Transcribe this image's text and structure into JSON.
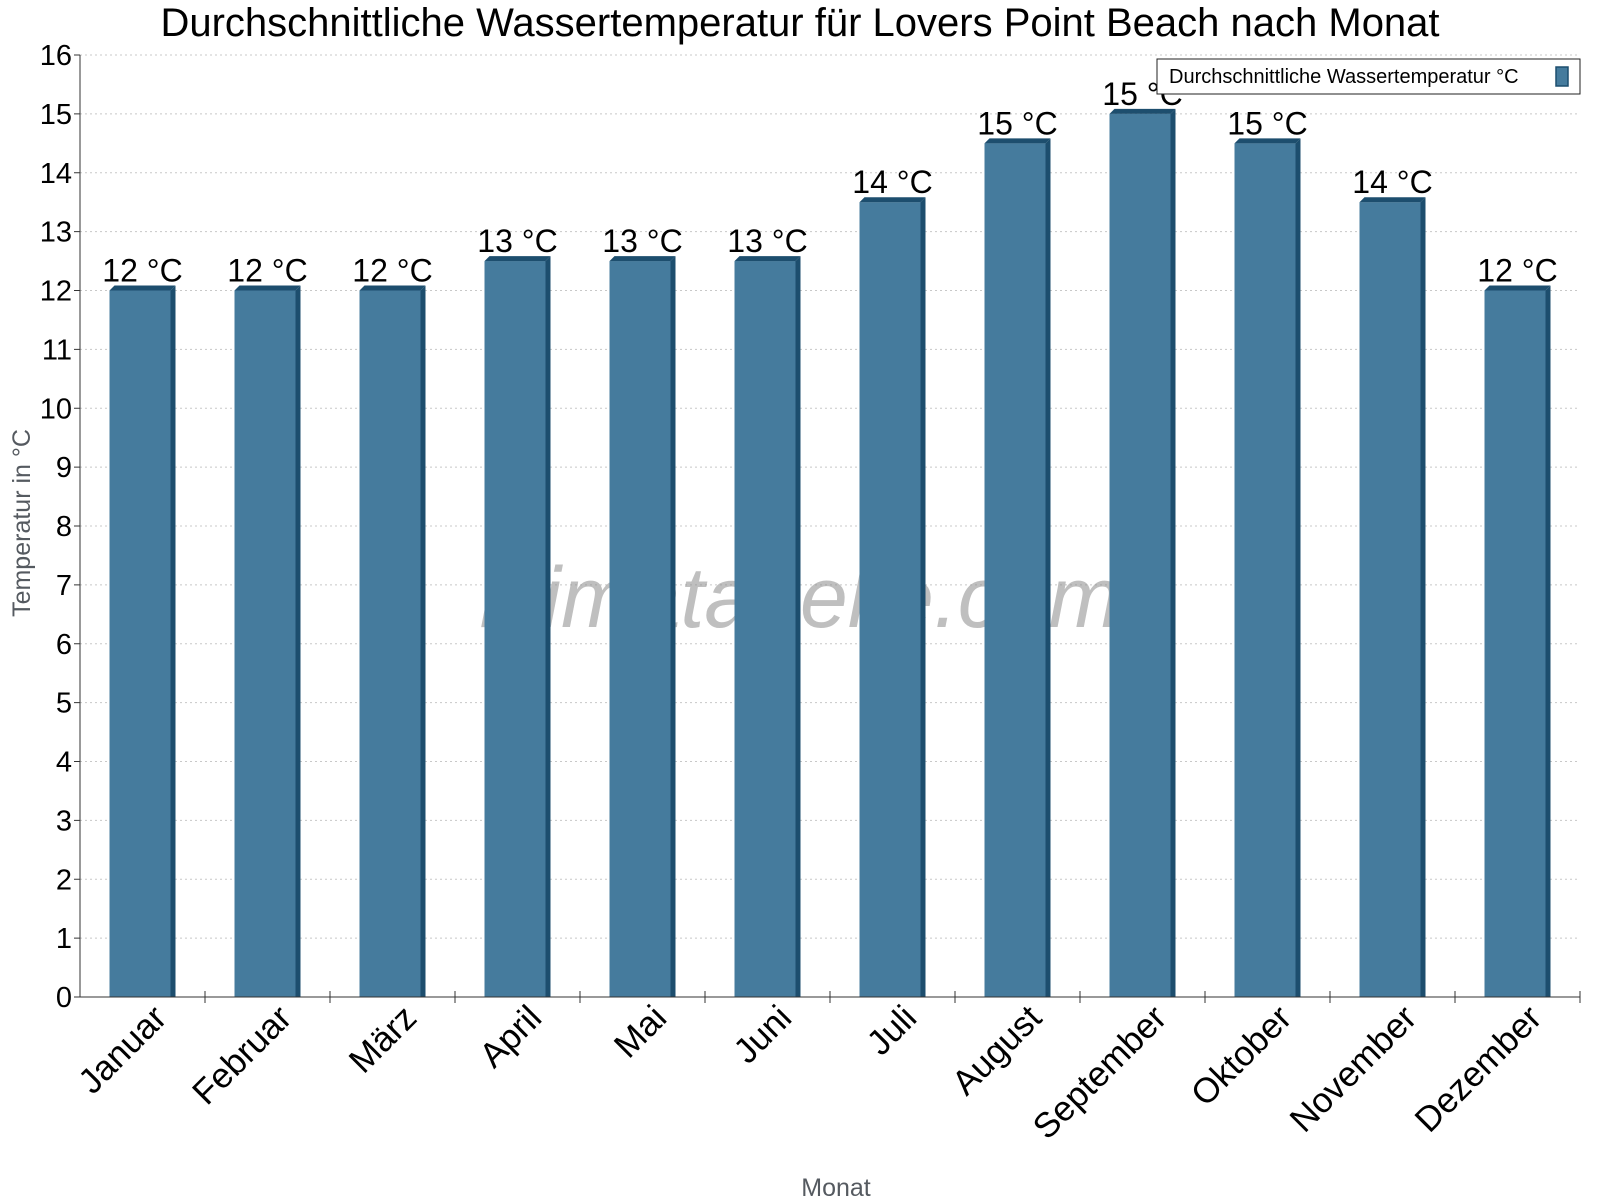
{
  "chart_data": {
    "type": "bar",
    "title": "Durchschnittliche Wassertemperatur für Lovers Point Beach nach Monat",
    "xlabel": "Monat",
    "ylabel": "Temperatur in °C",
    "ylim": [
      0,
      16
    ],
    "yticks": [
      "0",
      "1",
      "2",
      "3",
      "4",
      "5",
      "6",
      "7",
      "8",
      "9",
      "10",
      "11",
      "12",
      "13",
      "14",
      "15",
      "16"
    ],
    "grid": true,
    "legend_position": "top-right",
    "watermark": "klimatabelle.com",
    "categories": [
      "Januar",
      "Februar",
      "März",
      "April",
      "Mai",
      "Juni",
      "Juli",
      "August",
      "September",
      "Oktober",
      "November",
      "Dezember"
    ],
    "series": [
      {
        "name": "Durchschnittliche Wassertemperatur °C",
        "color": "#457b9d",
        "side_color": "#1d4e6e",
        "values": [
          12,
          12,
          12,
          12.5,
          12.5,
          12.5,
          13.5,
          14.5,
          15,
          14.5,
          13.5,
          12
        ],
        "labels": [
          "12 °C",
          "12 °C",
          "12 °C",
          "13 °C",
          "13 °C",
          "13 °C",
          "14 °C",
          "15 °C",
          "15 °C",
          "15 °C",
          "14 °C",
          "12 °C"
        ]
      }
    ]
  }
}
